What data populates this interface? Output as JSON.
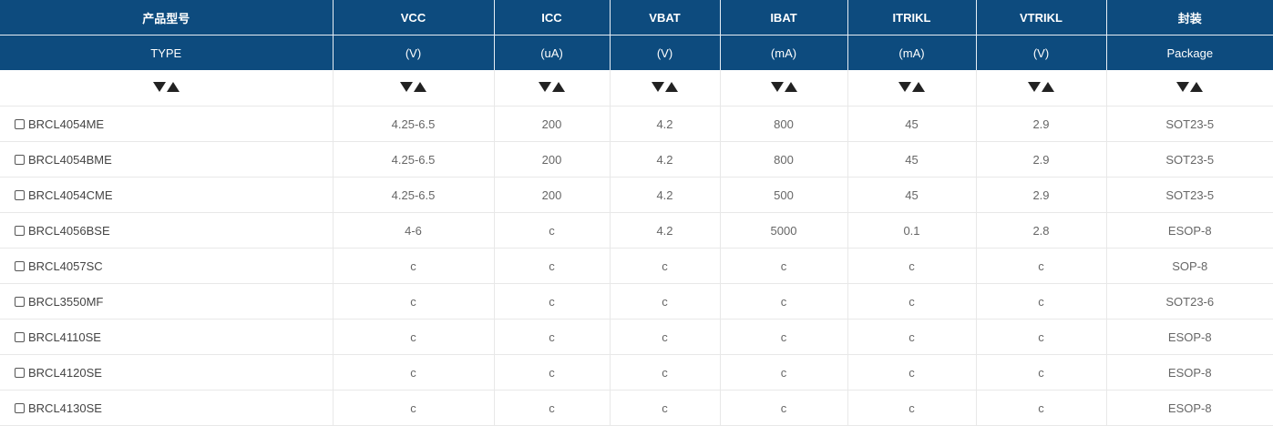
{
  "header_row1": [
    "产品型号",
    "VCC",
    "ICC",
    "VBAT",
    "IBAT",
    "ITRIKL",
    "VTRIKL",
    "封装"
  ],
  "header_row2": [
    "TYPE",
    "(V)",
    "(uA)",
    "(V)",
    "(mA)",
    "(mA)",
    "(V)",
    "Package"
  ],
  "sort_icons": [
    "sort-down-icon",
    "sort-up-icon"
  ],
  "rows": [
    {
      "model": "BRCL4054ME",
      "vcc": "4.25-6.5",
      "icc": "200",
      "vbat": "4.2",
      "ibat": "800",
      "itrikl": "45",
      "vtrikl": "2.9",
      "package": "SOT23-5"
    },
    {
      "model": "BRCL4054BME",
      "vcc": "4.25-6.5",
      "icc": "200",
      "vbat": "4.2",
      "ibat": "800",
      "itrikl": "45",
      "vtrikl": "2.9",
      "package": "SOT23-5"
    },
    {
      "model": "BRCL4054CME",
      "vcc": "4.25-6.5",
      "icc": "200",
      "vbat": "4.2",
      "ibat": "500",
      "itrikl": "45",
      "vtrikl": "2.9",
      "package": "SOT23-5"
    },
    {
      "model": "BRCL4056BSE",
      "vcc": "4-6",
      "icc": "c",
      "vbat": "4.2",
      "ibat": "5000",
      "itrikl": "0.1",
      "vtrikl": "2.8",
      "package": "ESOP-8"
    },
    {
      "model": "BRCL4057SC",
      "vcc": "c",
      "icc": "c",
      "vbat": "c",
      "ibat": "c",
      "itrikl": "c",
      "vtrikl": "c",
      "package": "SOP-8"
    },
    {
      "model": "BRCL3550MF",
      "vcc": "c",
      "icc": "c",
      "vbat": "c",
      "ibat": "c",
      "itrikl": "c",
      "vtrikl": "c",
      "package": "SOT23-6"
    },
    {
      "model": "BRCL4110SE",
      "vcc": "c",
      "icc": "c",
      "vbat": "c",
      "ibat": "c",
      "itrikl": "c",
      "vtrikl": "c",
      "package": "ESOP-8"
    },
    {
      "model": "BRCL4120SE",
      "vcc": "c",
      "icc": "c",
      "vbat": "c",
      "ibat": "c",
      "itrikl": "c",
      "vtrikl": "c",
      "package": "ESOP-8"
    },
    {
      "model": "BRCL4130SE",
      "vcc": "c",
      "icc": "c",
      "vbat": "c",
      "ibat": "c",
      "itrikl": "c",
      "vtrikl": "c",
      "package": "ESOP-8"
    }
  ],
  "colors": {
    "header_bg": "#0d4b7e",
    "header_text": "#ffffff",
    "cell_text": "#666666",
    "grid": "#e8e8e8",
    "arrow": "#222222"
  }
}
